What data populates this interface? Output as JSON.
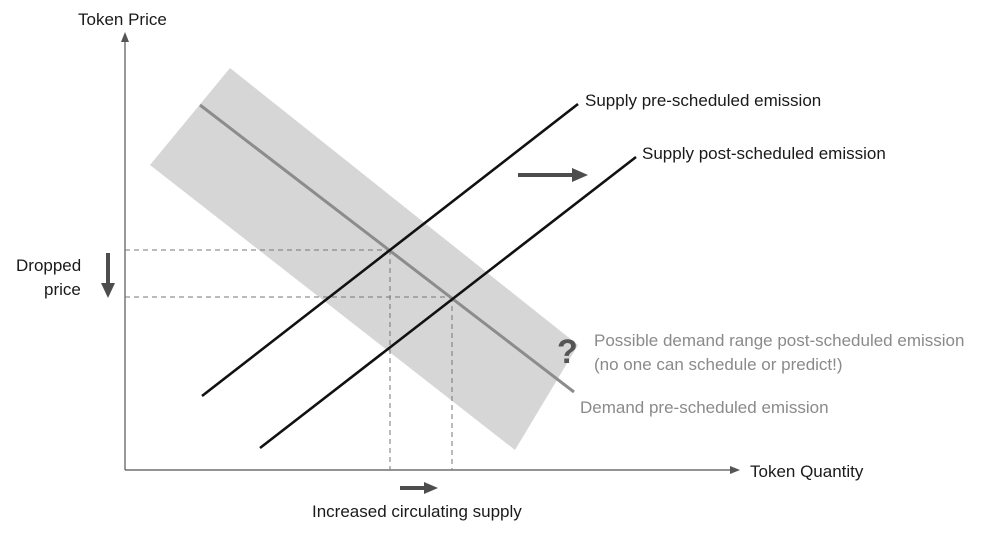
{
  "axes": {
    "y_label": "Token Price",
    "x_label": "Token Quantity"
  },
  "lines": {
    "supply_pre": "Supply pre-scheduled emission",
    "supply_post": "Supply post-scheduled emission",
    "demand_pre": "Demand pre-scheduled emission"
  },
  "demand_range": {
    "line1": "Possible demand range post-scheduled emission",
    "line2": "(no one can schedule or predict!)",
    "mark": "?"
  },
  "annotations": {
    "dropped_price_line1": "Dropped",
    "dropped_price_line2": "price",
    "increased_supply": "Increased circulating supply"
  },
  "colors": {
    "band": "#d6d6d6",
    "demand_line": "#8c8c8c",
    "supply_line": "#111111",
    "arrow": "#4d4d4d",
    "muted_text": "#8a8a8a"
  }
}
